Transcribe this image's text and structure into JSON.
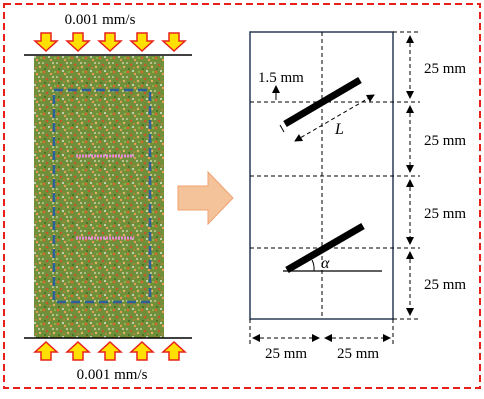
{
  "left_panel": {
    "top_speed_label": "0.001 mm/s",
    "bottom_speed_label": "0.001 mm/s"
  },
  "right_panel": {
    "width_label": "1.5 mm",
    "length_label": "L",
    "angle_label": "α",
    "dimension_labels_vertical": [
      "25 mm",
      "25 mm",
      "25 mm",
      "25 mm"
    ],
    "dimension_labels_horizontal": [
      "25 mm",
      "25 mm"
    ]
  },
  "colors": {
    "frame_dash": "#e8201c",
    "arrow_fill": "#ffe000",
    "arrow_stroke": "#e8201c",
    "specimen_green": "#5c8a2a",
    "specimen_orange": "#d97a3a",
    "inner_dash": "#2d5f9a",
    "flaw_pink": "#e58ad6",
    "big_arrow": "#f5c39a",
    "panel_border": "#2a3a55"
  }
}
